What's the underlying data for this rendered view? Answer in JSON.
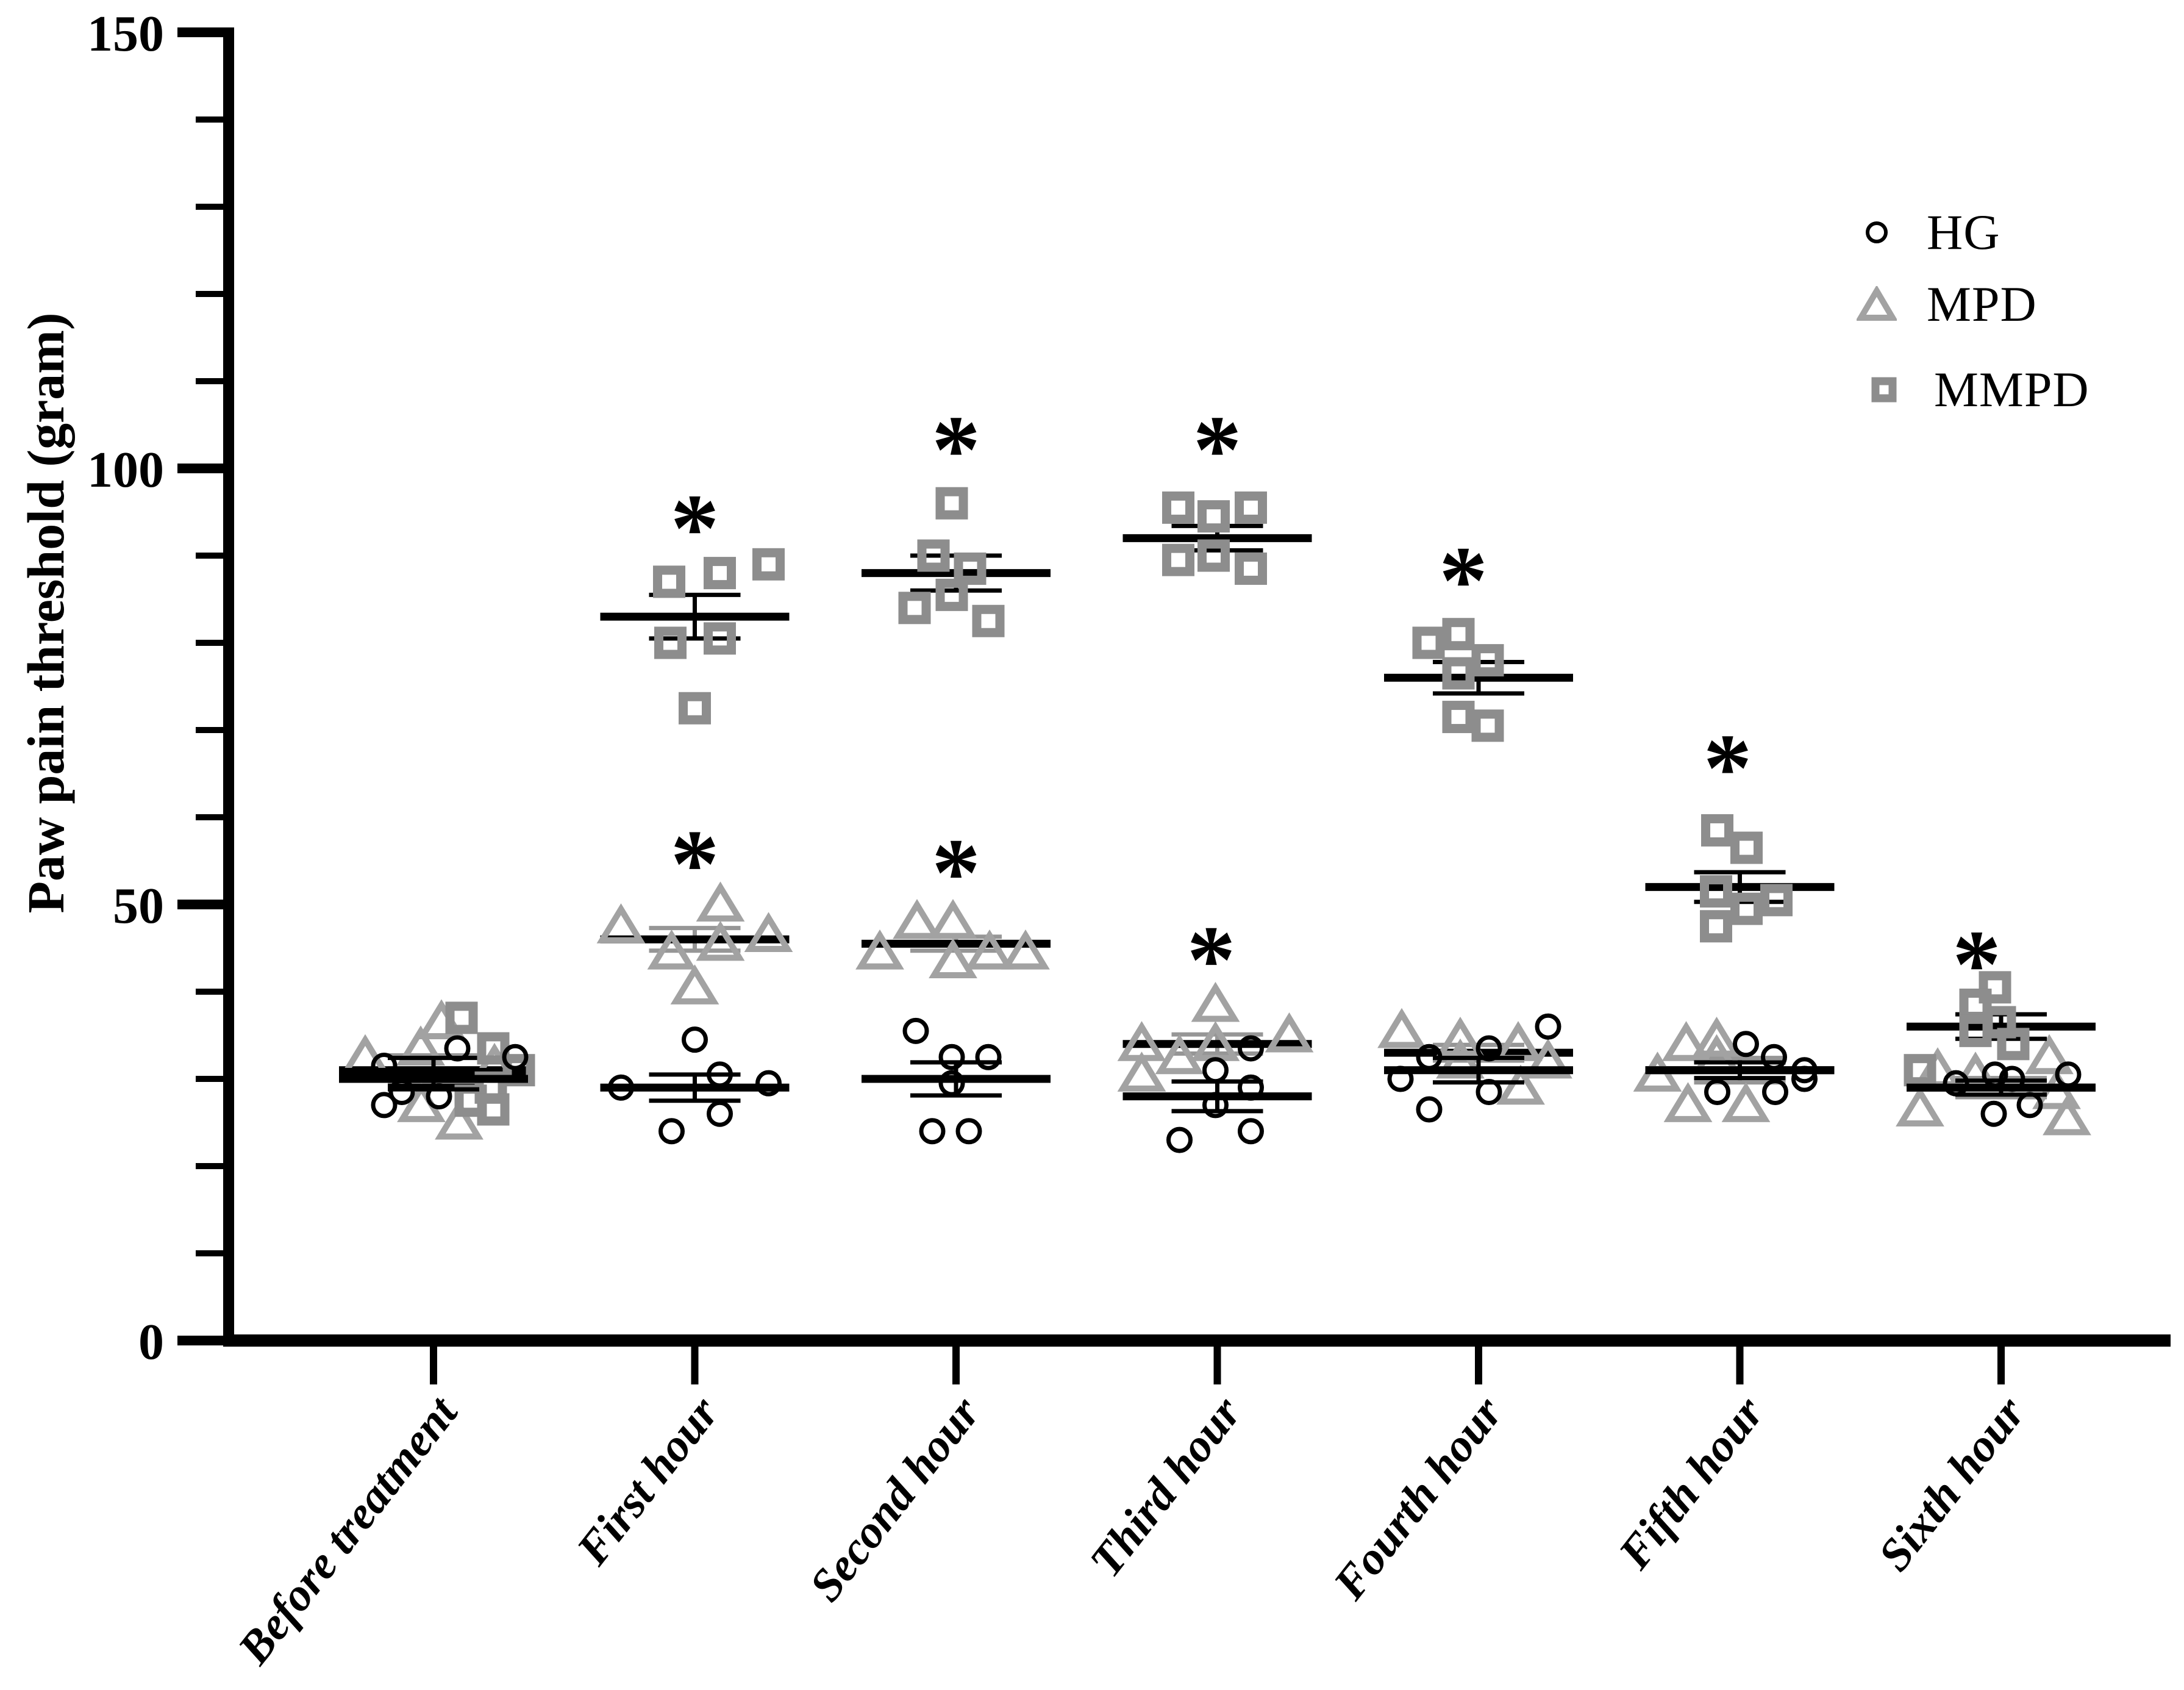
{
  "figure": {
    "background": "#ffffff",
    "axis_color": "#000000"
  },
  "chart_data": {
    "type": "scatter",
    "title": "",
    "xlabel": "",
    "ylabel": "Paw pain threshold (gram)",
    "ylim": [
      0,
      150
    ],
    "yticks": [
      0,
      50,
      100,
      150
    ],
    "minor_tick_step": 10,
    "grid": false,
    "legend_position": "upper-right",
    "categories": [
      "Before treatment",
      "First hour",
      "Second hour",
      "Third hour",
      "Fourth hour",
      "Fifth hour",
      "Sixth hour"
    ],
    "series": [
      {
        "name": "MPD",
        "marker": "triangle",
        "color": "#a2a2a2",
        "err_color": "#969696",
        "mean": [
          31,
          46,
          45.5,
          34,
          33,
          31,
          29
        ],
        "sem": [
          1.7,
          1.3,
          0.8,
          1.1,
          0.9,
          1.4,
          1.1
        ],
        "points": [
          [
            {
              "dx": -112,
              "v": 32.5
            },
            {
              "dx": -21,
              "v": 33.5
            },
            {
              "dx": 13,
              "v": 36.5
            },
            {
              "dx": 100,
              "v": 31.5
            },
            {
              "dx": -20,
              "v": 27
            },
            {
              "dx": 42,
              "v": 25
            }
          ],
          [
            {
              "dx": -121,
              "v": 47.5
            },
            {
              "dx": 42,
              "v": 50
            },
            {
              "dx": -38,
              "v": 44.5
            },
            {
              "dx": 42,
              "v": 45.5
            },
            {
              "dx": 121,
              "v": 46.5
            },
            {
              "dx": 0,
              "v": 40.5
            }
          ],
          [
            {
              "dx": -125,
              "v": 44.5
            },
            {
              "dx": -64,
              "v": 48
            },
            {
              "dx": -5,
              "v": 48
            },
            {
              "dx": -5,
              "v": 43.5
            },
            {
              "dx": 55,
              "v": 44.5
            },
            {
              "dx": 114,
              "v": 44.5
            }
          ],
          [
            {
              "dx": -3,
              "v": 38.5
            },
            {
              "dx": -124,
              "v": 34
            },
            {
              "dx": -3,
              "v": 34
            },
            {
              "dx": 118,
              "v": 35
            },
            {
              "dx": -62,
              "v": 32.5
            },
            {
              "dx": -124,
              "v": 30.5
            }
          ],
          [
            {
              "dx": -126,
              "v": 35.5
            },
            {
              "dx": -30,
              "v": 34.5
            },
            {
              "dx": 65,
              "v": 34
            },
            {
              "dx": 114,
              "v": 32
            },
            {
              "dx": -30,
              "v": 32
            },
            {
              "dx": 69,
              "v": 29
            }
          ],
          [
            {
              "dx": -88,
              "v": 34
            },
            {
              "dx": -38,
              "v": 34.5
            },
            {
              "dx": -135,
              "v": 30.5
            },
            {
              "dx": -38,
              "v": 32.5
            },
            {
              "dx": -85,
              "v": 27
            },
            {
              "dx": 10,
              "v": 27
            }
          ],
          [
            {
              "dx": -104,
              "v": 31
            },
            {
              "dx": -42,
              "v": 30.5
            },
            {
              "dx": 79,
              "v": 32.5
            },
            {
              "dx": -133,
              "v": 26.5
            },
            {
              "dx": 91,
              "v": 28.5
            },
            {
              "dx": 108,
              "v": 25.5
            }
          ]
        ]
      },
      {
        "name": "MMPD",
        "marker": "square",
        "color": "#8d8d8d",
        "err_color": "#000000",
        "mean": [
          30.8,
          83,
          88,
          92,
          76,
          52,
          36
        ],
        "sem": [
          1.6,
          2.5,
          2.0,
          1.4,
          1.8,
          1.7,
          1.4
        ],
        "points": [
          [
            {
              "dx": 46,
              "v": 37
            },
            {
              "dx": 98,
              "v": 33.5
            },
            {
              "dx": 140,
              "v": 31
            },
            {
              "dx": 94,
              "v": 29
            },
            {
              "dx": 61,
              "v": 27.5
            },
            {
              "dx": 98,
              "v": 26.5
            }
          ],
          [
            {
              "dx": -42,
              "v": 87
            },
            {
              "dx": 41,
              "v": 88
            },
            {
              "dx": 121,
              "v": 89
            },
            {
              "dx": -40,
              "v": 80
            },
            {
              "dx": 41,
              "v": 80.5
            },
            {
              "dx": 0,
              "v": 72.5
            }
          ],
          [
            {
              "dx": -7,
              "v": 96
            },
            {
              "dx": -37,
              "v": 90
            },
            {
              "dx": 23,
              "v": 88.5
            },
            {
              "dx": -7,
              "v": 85.5
            },
            {
              "dx": -68,
              "v": 84
            },
            {
              "dx": 53,
              "v": 82.5
            }
          ],
          [
            {
              "dx": -64,
              "v": 95.5
            },
            {
              "dx": -6,
              "v": 94.5
            },
            {
              "dx": 55,
              "v": 95.5
            },
            {
              "dx": -64,
              "v": 89.5
            },
            {
              "dx": -6,
              "v": 90
            },
            {
              "dx": 55,
              "v": 88.5
            }
          ],
          [
            {
              "dx": -82,
              "v": 80
            },
            {
              "dx": -33,
              "v": 81
            },
            {
              "dx": -33,
              "v": 76.5
            },
            {
              "dx": 15,
              "v": 78
            },
            {
              "dx": -33,
              "v": 71.5
            },
            {
              "dx": 15,
              "v": 70.5
            }
          ],
          [
            {
              "dx": -37,
              "v": 58.5
            },
            {
              "dx": 11,
              "v": 56.5
            },
            {
              "dx": -39,
              "v": 51.5
            },
            {
              "dx": 11,
              "v": 49.5
            },
            {
              "dx": 60,
              "v": 50.5
            },
            {
              "dx": -39,
              "v": 47.5
            }
          ],
          [
            {
              "dx": -10,
              "v": 40.5
            },
            {
              "dx": -42,
              "v": 38.5
            },
            {
              "dx": -42,
              "v": 35.5
            },
            {
              "dx": -2,
              "v": 36.5
            },
            {
              "dx": 20,
              "v": 34
            },
            {
              "dx": -133,
              "v": 31
            }
          ]
        ]
      },
      {
        "name": "HG",
        "marker": "circle",
        "color": "#000000",
        "err_color": "#000000",
        "mean": [
          30,
          29,
          30,
          28,
          31,
          31,
          29
        ],
        "sem": [
          1.2,
          1.5,
          1.9,
          1.7,
          1.4,
          0.9,
          0.8
        ],
        "points": [
          [
            {
              "dx": 39,
              "v": 33.5
            },
            {
              "dx": 134,
              "v": 32.5
            },
            {
              "dx": -81,
              "v": 31.5
            },
            {
              "dx": -52,
              "v": 28.5
            },
            {
              "dx": 9,
              "v": 28
            },
            {
              "dx": -81,
              "v": 27
            }
          ],
          [
            {
              "dx": 0,
              "v": 34.5
            },
            {
              "dx": 41,
              "v": 30.5
            },
            {
              "dx": -121,
              "v": 29
            },
            {
              "dx": 121,
              "v": 29.5
            },
            {
              "dx": 41,
              "v": 26
            },
            {
              "dx": -38,
              "v": 24
            }
          ],
          [
            {
              "dx": -66,
              "v": 35.5
            },
            {
              "dx": -7,
              "v": 32.5
            },
            {
              "dx": 53,
              "v": 32.5
            },
            {
              "dx": -7,
              "v": 29.5
            },
            {
              "dx": -39,
              "v": 24
            },
            {
              "dx": 21,
              "v": 24
            }
          ],
          [
            {
              "dx": 55,
              "v": 33.5
            },
            {
              "dx": -3,
              "v": 31
            },
            {
              "dx": 55,
              "v": 29
            },
            {
              "dx": -3,
              "v": 27
            },
            {
              "dx": 55,
              "v": 24
            },
            {
              "dx": -62,
              "v": 23
            }
          ],
          [
            {
              "dx": 114,
              "v": 36
            },
            {
              "dx": 17,
              "v": 33.5
            },
            {
              "dx": -81,
              "v": 32.5
            },
            {
              "dx": -128,
              "v": 30
            },
            {
              "dx": 17,
              "v": 28.5
            },
            {
              "dx": -81,
              "v": 26.5
            }
          ],
          [
            {
              "dx": 10,
              "v": 34
            },
            {
              "dx": 56,
              "v": 32.5
            },
            {
              "dx": 106,
              "v": 31
            },
            {
              "dx": -37,
              "v": 28.5
            },
            {
              "dx": 58,
              "v": 28.5
            },
            {
              "dx": 106,
              "v": 30
            }
          ],
          [
            {
              "dx": -74,
              "v": 29.5
            },
            {
              "dx": -10,
              "v": 30.5
            },
            {
              "dx": 18,
              "v": 30
            },
            {
              "dx": 110,
              "v": 30.5
            },
            {
              "dx": -12,
              "v": 26
            },
            {
              "dx": 47,
              "v": 27
            }
          ]
        ]
      }
    ],
    "annotations": [
      {
        "cat": 1,
        "series": "MMPD",
        "value": 95,
        "dx": 0,
        "symbol": "*"
      },
      {
        "cat": 1,
        "series": "MPD",
        "value": 56.5,
        "dx": 0,
        "symbol": "*"
      },
      {
        "cat": 2,
        "series": "MMPD",
        "value": 104,
        "dx": 0,
        "symbol": "*"
      },
      {
        "cat": 2,
        "series": "MPD",
        "value": 55.5,
        "dx": 0,
        "symbol": "*"
      },
      {
        "cat": 3,
        "series": "MMPD",
        "value": 104,
        "dx": 0,
        "symbol": "*"
      },
      {
        "cat": 3,
        "series": "MPD",
        "value": 45.5,
        "dx": -10,
        "symbol": "*"
      },
      {
        "cat": 4,
        "series": "MMPD",
        "value": 89,
        "dx": -25,
        "symbol": "*"
      },
      {
        "cat": 5,
        "series": "MMPD",
        "value": 67.5,
        "dx": -20,
        "symbol": "*"
      },
      {
        "cat": 6,
        "series": "MMPD",
        "value": 45,
        "dx": -40,
        "symbol": "*"
      }
    ],
    "legend": [
      {
        "label": "HG",
        "marker": "circle"
      },
      {
        "label": "MPD",
        "marker": "triangle"
      },
      {
        "label": "MMPD",
        "marker": "square"
      }
    ]
  }
}
